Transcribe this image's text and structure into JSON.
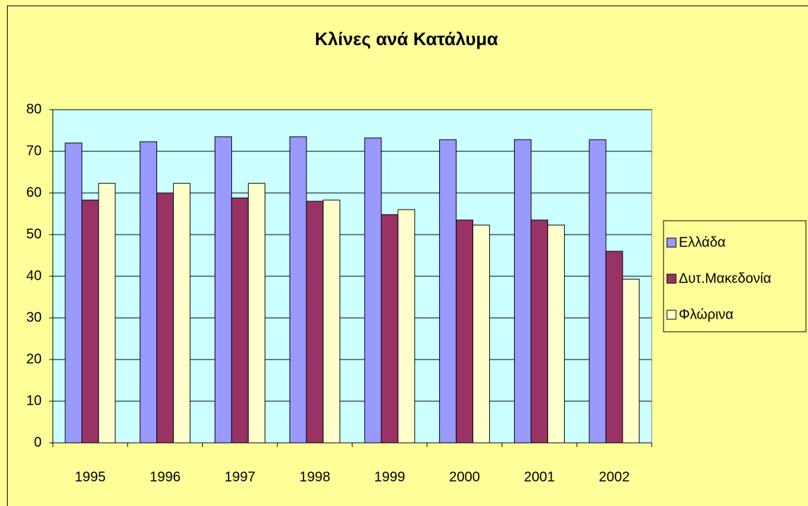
{
  "chart_data": {
    "type": "bar",
    "title": "Κλίνες ανά Κατάλυμα",
    "categories": [
      "1995",
      "1996",
      "1997",
      "1998",
      "1999",
      "2000",
      "2001",
      "2002"
    ],
    "series": [
      {
        "name": "Ελλάδα",
        "color": "#9999ff",
        "values": [
          72,
          72.3,
          73.5,
          73.5,
          73.2,
          72.8,
          72.8,
          72.8
        ]
      },
      {
        "name": "Δυτ.Μακεδονία",
        "color": "#993366",
        "values": [
          58.3,
          60,
          58.8,
          58,
          54.8,
          53.5,
          53.5,
          46
        ]
      },
      {
        "name": "Φλώρινα",
        "color": "#ffffcc",
        "values": [
          62.3,
          62.3,
          62.3,
          58.3,
          56,
          52.3,
          52.3,
          39.3
        ]
      }
    ],
    "ylim": [
      0,
      80
    ],
    "yticks": [
      0,
      10,
      20,
      30,
      40,
      50,
      60,
      70,
      80
    ],
    "grid": true,
    "legend": "right"
  }
}
